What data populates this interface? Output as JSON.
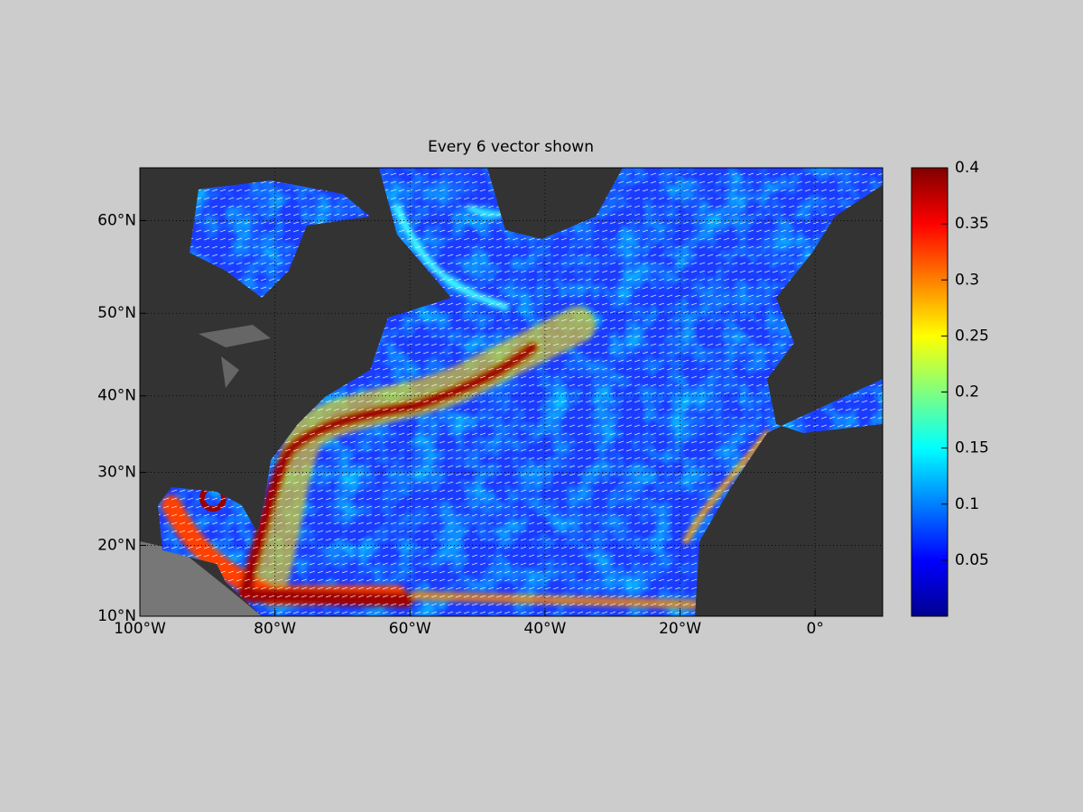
{
  "chart_data": {
    "type": "map",
    "title": "Every 6 vector shown",
    "xlim": [
      -100,
      10
    ],
    "xticks": [
      {
        "value": -100,
        "label": "100°W"
      },
      {
        "value": -80,
        "label": "80°W"
      },
      {
        "value": -60,
        "label": "60°W"
      },
      {
        "value": -40,
        "label": "40°W"
      },
      {
        "value": -20,
        "label": "20°W"
      },
      {
        "value": 0,
        "label": "0°"
      }
    ],
    "ylim": [
      10,
      65
    ],
    "yticks": [
      {
        "value": 10,
        "label": "10°N"
      },
      {
        "value": 20,
        "label": "20°N"
      },
      {
        "value": 30,
        "label": "30°N"
      },
      {
        "value": 40,
        "label": "40°N"
      },
      {
        "value": 50,
        "label": "50°N"
      },
      {
        "value": 60,
        "label": "60°N"
      }
    ],
    "grid": true,
    "colorbar": {
      "clim": [
        0,
        0.4
      ],
      "ticks": [
        0.05,
        0.1,
        0.15,
        0.2,
        0.25,
        0.3,
        0.35,
        0.4
      ]
    }
  }
}
